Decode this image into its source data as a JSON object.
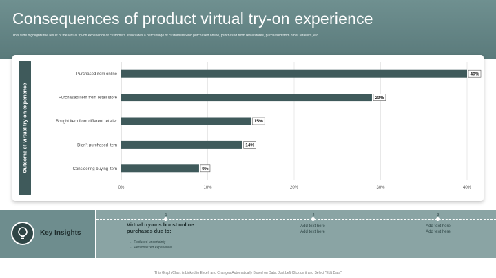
{
  "header": {
    "title": "Consequences of product virtual try-on experience",
    "subtitle": "This slide highlights the result of the virtual try-on experience of customers. It includes a percentage of customers who purchased online, purchased from retail stores, purchased from other retailers, etc."
  },
  "chart_data": {
    "type": "bar",
    "orientation": "horizontal",
    "ylabel": "Outcome of virtual try-on experience",
    "xlabel": "",
    "categories": [
      "Purchased item online",
      "Purchased item from retail store",
      "Bought item from different retailer",
      "Didn't purchased item",
      "Considering buying item"
    ],
    "values": [
      40,
      29,
      15,
      14,
      9
    ],
    "value_labels": [
      "40%",
      "29%",
      "15%",
      "14%",
      "9%"
    ],
    "xlim": [
      0,
      40
    ],
    "xticks": [
      0,
      10,
      20,
      30,
      40
    ],
    "xtick_labels": [
      "0%",
      "10%",
      "20%",
      "30%",
      "40%"
    ],
    "grid": true,
    "bar_color": "#3f5a5b"
  },
  "insights": {
    "label": "Key Insights",
    "steps": [
      "1",
      "2",
      "3"
    ],
    "main_title": "Virtual try-ons boost online purchases due to:",
    "points": [
      "Reduced uncertainty",
      "Personalized experience"
    ],
    "add_text_1": [
      "Add text here",
      "Add text here"
    ],
    "add_text_2": [
      "Add text here",
      "Add text here"
    ]
  },
  "footer": {
    "note": "This Graph/Chart is Linked to Excel, and Changes Automatically Based on Data. Just Left Click on it and Select \"Edit Data\""
  }
}
